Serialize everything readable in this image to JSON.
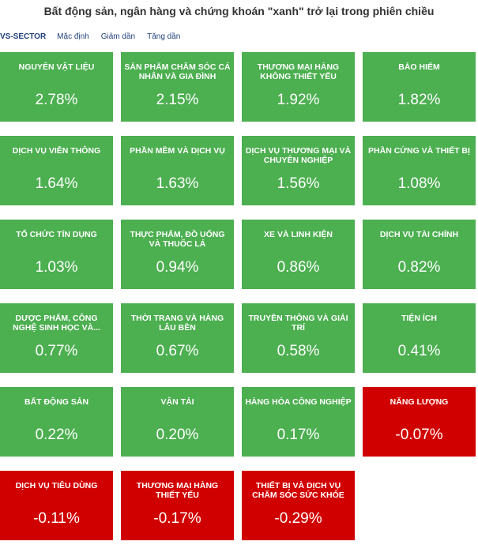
{
  "title": "Bất động sản, ngân hàng và chứng khoán \"xanh\" trở lại trong phiên chiều",
  "toolbar": {
    "index_label": "VS-SECTOR",
    "sort_options": [
      "Mặc định",
      "Giảm dần",
      "Tăng dần"
    ]
  },
  "colors": {
    "up": "#4caf50",
    "down": "#d10000"
  },
  "sectors": [
    {
      "name": "NGUYÊN VẬT LIỆU",
      "change": "2.78%",
      "status": "up"
    },
    {
      "name": "SẢN PHẨM CHĂM SÓC CÁ NHÂN VÀ GIA ĐÌNH",
      "change": "2.15%",
      "status": "up"
    },
    {
      "name": "THƯƠNG MẠI HÀNG KHÔNG THIẾT YẾU",
      "change": "1.92%",
      "status": "up"
    },
    {
      "name": "BẢO HIỂM",
      "change": "1.82%",
      "status": "up"
    },
    {
      "name": "DỊCH VỤ VIỄN THÔNG",
      "change": "1.64%",
      "status": "up"
    },
    {
      "name": "PHẦN MỀM VÀ DỊCH VỤ",
      "change": "1.63%",
      "status": "up"
    },
    {
      "name": "DỊCH VỤ THƯƠNG MẠI VÀ CHUYÊN NGHIỆP",
      "change": "1.56%",
      "status": "up"
    },
    {
      "name": "PHẦN CỨNG VÀ THIẾT BỊ",
      "change": "1.08%",
      "status": "up"
    },
    {
      "name": "TỔ CHỨC TÍN DỤNG",
      "change": "1.03%",
      "status": "up"
    },
    {
      "name": "THỰC PHẨM, ĐỒ UỐNG VÀ THUỐC LÁ",
      "change": "0.94%",
      "status": "up"
    },
    {
      "name": "XE VÀ LINH KIỆN",
      "change": "0.86%",
      "status": "up"
    },
    {
      "name": "DỊCH VỤ TÀI CHÍNH",
      "change": "0.82%",
      "status": "up"
    },
    {
      "name": "DƯỢC PHẨM, CÔNG NGHỆ SINH HỌC VÀ...",
      "change": "0.77%",
      "status": "up"
    },
    {
      "name": "THỜI TRANG VÀ HÀNG LÂU BỀN",
      "change": "0.67%",
      "status": "up"
    },
    {
      "name": "TRUYỀN THÔNG VÀ GIẢI TRÍ",
      "change": "0.58%",
      "status": "up"
    },
    {
      "name": "TIỆN ÍCH",
      "change": "0.41%",
      "status": "up"
    },
    {
      "name": "BẤT ĐỘNG SẢN",
      "change": "0.22%",
      "status": "up"
    },
    {
      "name": "VẬN TẢI",
      "change": "0.20%",
      "status": "up"
    },
    {
      "name": "HÀNG HÓA CÔNG NGHIỆP",
      "change": "0.17%",
      "status": "up"
    },
    {
      "name": "NĂNG LƯỢNG",
      "change": "-0.07%",
      "status": "down"
    },
    {
      "name": "DỊCH VỤ TIÊU DÙNG",
      "change": "-0.11%",
      "status": "down"
    },
    {
      "name": "THƯƠNG MẠI HÀNG THIẾT YẾU",
      "change": "-0.17%",
      "status": "down"
    },
    {
      "name": "THIẾT BỊ VÀ DỊCH VỤ CHĂM SÓC SỨC KHỎE",
      "change": "-0.29%",
      "status": "down"
    }
  ]
}
